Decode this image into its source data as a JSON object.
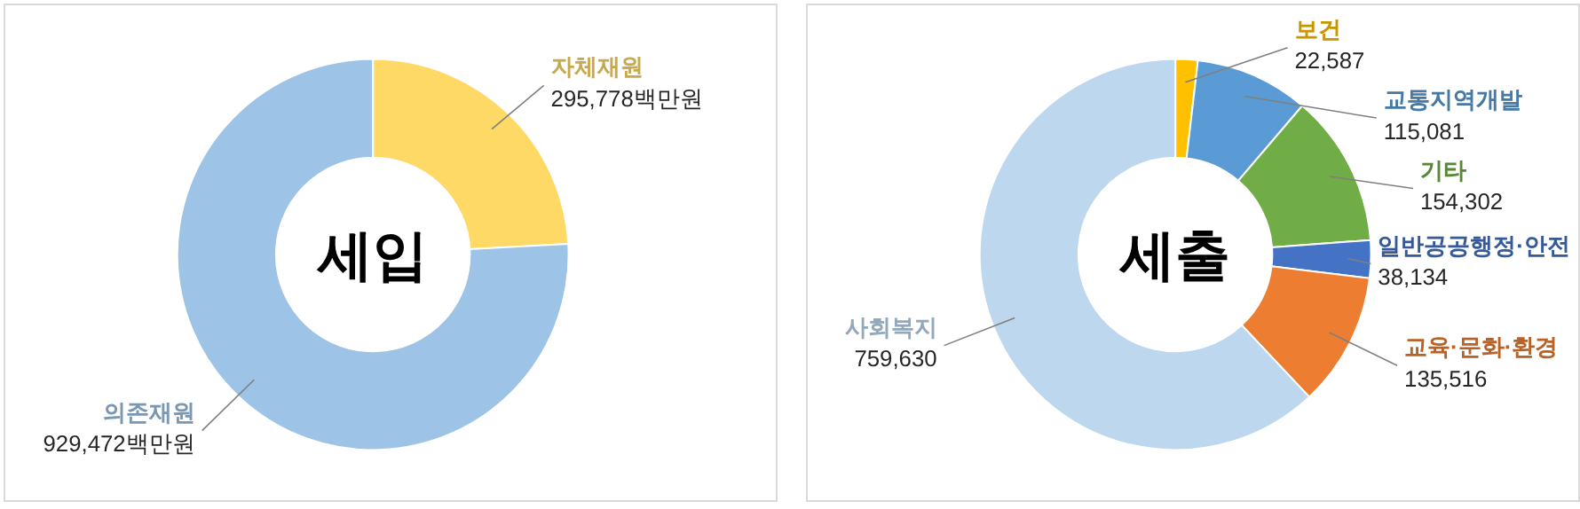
{
  "chart_data": [
    {
      "type": "donut",
      "title": "세입",
      "categories": [
        "자체재원",
        "의존재원"
      ],
      "values": [
        295778,
        929472
      ],
      "colors": [
        "#ffd966",
        "#9dc3e6"
      ],
      "value_labels": [
        "295,778백만원",
        "929,472백만원"
      ]
    },
    {
      "type": "donut",
      "title": "세출",
      "categories": [
        "보건",
        "교통지역개발",
        "기타",
        "일반공공행정·안전",
        "교육·문화·환경",
        "사회복지"
      ],
      "values": [
        22587,
        115081,
        154302,
        38134,
        135516,
        759630
      ],
      "colors": [
        "#ffc000",
        "#5b9bd5",
        "#70ad47",
        "#4472c4",
        "#ed7d31",
        "#bdd7ee"
      ],
      "value_labels": [
        "22,587",
        "115,081",
        "154,302",
        "38,134",
        "135,516",
        "759,630"
      ]
    }
  ]
}
